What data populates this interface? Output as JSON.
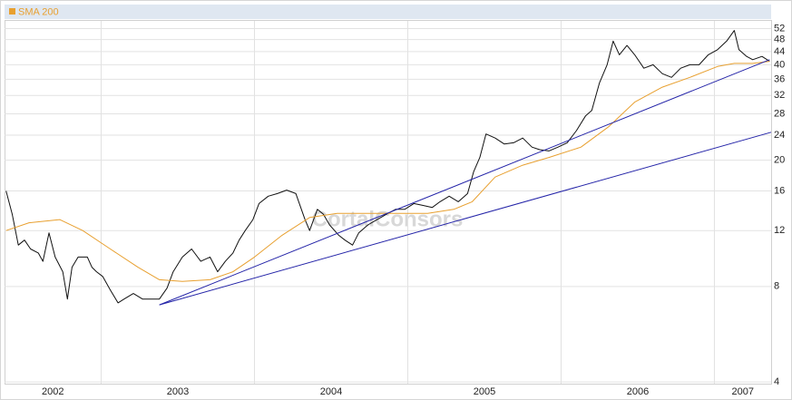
{
  "chart_data": {
    "type": "line",
    "watermark": "CortalConsors",
    "log_scale": true,
    "grid": true,
    "xlim": [
      2002.37,
      2007.37
    ],
    "xticks": [
      2002,
      2003,
      2004,
      2005,
      2006,
      2007
    ],
    "ylim": [
      3.95,
      55
    ],
    "yticks": [
      4,
      8,
      12,
      16,
      20,
      24,
      28,
      32,
      36,
      40,
      44,
      48,
      52
    ],
    "series": [
      {
        "color": "#111111",
        "x": [
          2002.38,
          2002.42,
          2002.46,
          2002.5,
          2002.54,
          2002.59,
          2002.62,
          2002.66,
          2002.7,
          2002.75,
          2002.78,
          2002.81,
          2002.85,
          2002.91,
          2002.94,
          2002.97,
          2003.01,
          2003.06,
          2003.11,
          2003.15,
          2003.21,
          2003.27,
          2003.32,
          2003.38,
          2003.43,
          2003.47,
          2003.53,
          2003.59,
          2003.65,
          2003.71,
          2003.76,
          2003.81,
          2003.86,
          2003.9,
          2003.94,
          2003.99,
          2004.03,
          2004.09,
          2004.15,
          2004.21,
          2004.27,
          2004.33,
          2004.36,
          2004.41,
          2004.45,
          2004.49,
          2004.55,
          2004.59,
          2004.64,
          2004.68,
          2004.74,
          2004.8,
          2004.86,
          2004.92,
          2004.98,
          2005.04,
          2005.1,
          2005.16,
          2005.21,
          2005.27,
          2005.33,
          2005.39,
          2005.43,
          2005.47,
          2005.51,
          2005.57,
          2005.63,
          2005.69,
          2005.75,
          2005.81,
          2005.86,
          2005.92,
          2005.98,
          2006.04,
          2006.1,
          2006.16,
          2006.2,
          2006.25,
          2006.3,
          2006.34,
          2006.38,
          2006.43,
          2006.48,
          2006.54,
          2006.6,
          2006.66,
          2006.72,
          2006.78,
          2006.84,
          2006.9,
          2006.96,
          2007.02,
          2007.08,
          2007.13,
          2007.16,
          2007.21,
          2007.25,
          2007.31,
          2007.36
        ],
        "values": [
          16,
          13.5,
          10.8,
          11.2,
          10.5,
          10.2,
          9.6,
          11.8,
          9.9,
          8.9,
          7.3,
          9.2,
          9.9,
          9.9,
          9.2,
          8.9,
          8.6,
          7.8,
          7.1,
          7.3,
          7.6,
          7.3,
          7.3,
          7.3,
          7.9,
          8.9,
          9.9,
          10.5,
          9.6,
          9.9,
          8.9,
          9.6,
          10.2,
          11.2,
          12,
          13,
          14.6,
          15.4,
          15.7,
          16.1,
          15.7,
          13,
          12,
          14,
          13.5,
          12.5,
          11.6,
          11.2,
          10.8,
          11.8,
          12.5,
          13,
          13.5,
          14,
          14,
          14.6,
          14.4,
          14.2,
          14.8,
          15.4,
          14.8,
          15.7,
          18.4,
          20.4,
          24.2,
          23.5,
          22.5,
          22.7,
          23.5,
          22,
          21.6,
          21.4,
          22,
          22.7,
          24.8,
          27.6,
          28.7,
          35,
          40,
          47.5,
          43,
          46,
          43,
          39,
          40,
          37.5,
          36.5,
          39,
          40,
          40,
          43,
          44.6,
          47.5,
          51.3,
          44.6,
          42.5,
          41.5,
          42.5,
          41
        ]
      },
      {
        "name": "SMA 200",
        "color": "#e8a030",
        "x": [
          2002.38,
          2002.53,
          2002.73,
          2002.88,
          2003.06,
          2003.24,
          2003.38,
          2003.53,
          2003.71,
          2003.86,
          2004.0,
          2004.18,
          2004.36,
          2004.54,
          2004.71,
          2004.89,
          2005.13,
          2005.3,
          2005.42,
          2005.57,
          2005.75,
          2005.92,
          2006.13,
          2006.31,
          2006.48,
          2006.66,
          2006.84,
          2007.02,
          2007.13,
          2007.25,
          2007.36
        ],
        "values": [
          12,
          12.7,
          13,
          12,
          10.5,
          9.2,
          8.4,
          8.3,
          8.4,
          8.9,
          9.9,
          11.6,
          13.2,
          13.6,
          13.6,
          13.6,
          13.6,
          14,
          14.8,
          17.7,
          19.3,
          20.4,
          22,
          25.5,
          30.5,
          34,
          36.5,
          39.5,
          40.4,
          40.4,
          41
        ]
      },
      {
        "color": "#2424a8",
        "x": [
          2003.38,
          2007.36
        ],
        "values": [
          7.0,
          41.5
        ]
      },
      {
        "color": "#2424a8",
        "x": [
          2003.38,
          2007.37
        ],
        "values": [
          7.0,
          24.5
        ]
      }
    ]
  }
}
